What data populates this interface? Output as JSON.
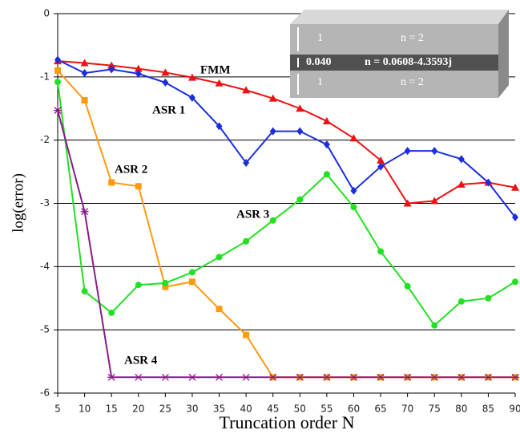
{
  "chart_data": {
    "type": "line",
    "xlabel": "Truncation order N",
    "ylabel": "log(error)",
    "x": [
      5,
      10,
      15,
      20,
      25,
      30,
      35,
      40,
      45,
      50,
      55,
      60,
      65,
      70,
      75,
      80,
      85,
      90
    ],
    "xlim": [
      5,
      90
    ],
    "xticks": [
      5,
      10,
      15,
      20,
      25,
      30,
      35,
      40,
      45,
      50,
      55,
      60,
      65,
      70,
      75,
      80,
      85,
      90
    ],
    "ylim": [
      -6,
      0
    ],
    "yticks": [
      0,
      -1,
      -2,
      -3,
      -4,
      -5,
      -6
    ],
    "grid": true,
    "series": [
      {
        "name": "FMM",
        "color": "#ee1111",
        "marker": "triangle",
        "values": [
          -0.75,
          -0.78,
          -0.82,
          -0.87,
          -0.93,
          -1.01,
          -1.1,
          -1.21,
          -1.34,
          -1.5,
          -1.7,
          -1.97,
          -2.32,
          -3.0,
          -2.96,
          -2.7,
          -2.67,
          -2.75
        ]
      },
      {
        "name": "ASR 1",
        "color": "#1a2ee0",
        "marker": "diamond",
        "values": [
          -0.73,
          -0.94,
          -0.88,
          -0.95,
          -1.09,
          -1.33,
          -1.78,
          -2.36,
          -1.86,
          -1.86,
          -2.07,
          -2.8,
          -2.42,
          -2.17,
          -2.17,
          -2.3,
          -2.67,
          -3.22
        ]
      },
      {
        "name": "ASR 2",
        "color": "#ff9a10",
        "marker": "square",
        "values": [
          -0.9,
          -1.37,
          -2.67,
          -2.73,
          -4.32,
          -4.24,
          -4.67,
          -5.08,
          -5.75,
          -5.75,
          -5.75,
          -5.75,
          -5.75,
          -5.75,
          -5.75,
          -5.75,
          -5.75,
          -5.75
        ]
      },
      {
        "name": "ASR 3",
        "color": "#22e022",
        "marker": "circle",
        "values": [
          -1.08,
          -4.39,
          -4.73,
          -4.29,
          -4.26,
          -4.09,
          -3.85,
          -3.6,
          -3.27,
          -2.94,
          -2.54,
          -3.06,
          -3.76,
          -4.31,
          -4.93,
          -4.55,
          -4.5,
          -4.24
        ]
      },
      {
        "name": "ASR 4",
        "color": "#8a1a8a",
        "marker": "asterisk",
        "values": [
          -1.53,
          -3.13,
          -5.75,
          -5.75,
          -5.75,
          -5.75,
          -5.75,
          -5.75,
          -5.75,
          -5.75,
          -5.75,
          -5.75,
          -5.75,
          -5.75,
          -5.75,
          -5.75,
          -5.75,
          -5.75
        ]
      }
    ],
    "inset": {
      "top_thickness": "1",
      "top_index": "n = 2",
      "middle_thickness": "0.040",
      "middle_index": "n = 0.0608-4.3593j",
      "bottom_thickness": "1",
      "bottom_index": "n = 2"
    }
  }
}
